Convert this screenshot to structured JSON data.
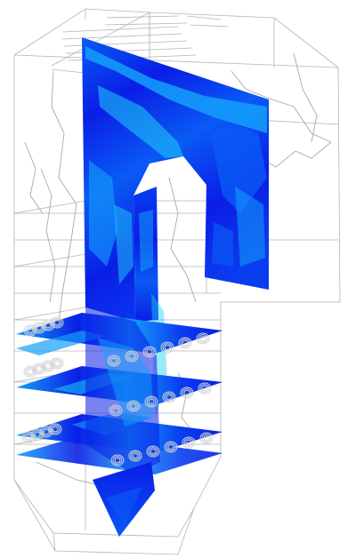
{
  "colors": {
    "background": "#ffffff",
    "wireframe": "#b4b4b4",
    "streamline": "#a8a8a8",
    "contour_low": "#0a1ee6",
    "contour_mid": "#0a5af5",
    "contour_high": "#14a0fa",
    "contour_peak": "#1ed2f5",
    "burner_ring": "#d2d2d2"
  },
  "scene": {
    "components": [
      "furnace-wireframe",
      "front-wall-section",
      "rear-pass-section",
      "burner-level-planes",
      "hopper-section",
      "streamlines",
      "burner-rings"
    ],
    "burner_levels": 4,
    "burners_per_row": 6
  }
}
